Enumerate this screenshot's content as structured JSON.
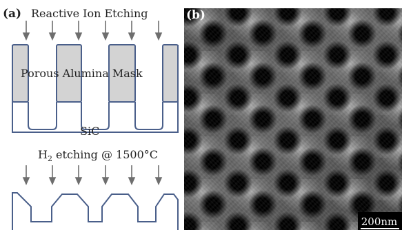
{
  "figure": {
    "panel_a": {
      "label": "(a)",
      "process_1": "Reactive Ion Etching",
      "mask_label": "Porous Alumina Mask",
      "substrate_label": "SiC",
      "process_2": {
        "prefix": "H",
        "subscript": "2",
        "suffix": " etching @ 1500°C"
      },
      "colors": {
        "outline": "#4a5f8a",
        "mask_fill": "#d3d3d3",
        "arrow": "#6e6e6e"
      }
    },
    "panel_b": {
      "label": "(b)",
      "scale_bar": "200nm"
    }
  }
}
